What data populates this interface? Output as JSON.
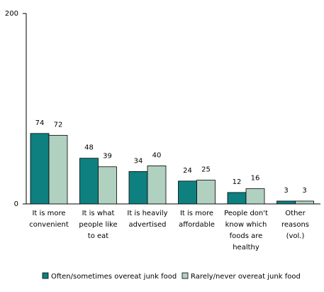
{
  "chart_data": {
    "type": "bar",
    "title": "",
    "xlabel": "",
    "ylabel": "",
    "ylim": [
      0,
      200
    ],
    "yticks": [
      "0",
      "200"
    ],
    "categories": [
      [
        "It is more",
        "convenient"
      ],
      [
        "It is what",
        "people like",
        "to eat"
      ],
      [
        "It is heavily",
        "advertised"
      ],
      [
        "It is more",
        "affordable"
      ],
      [
        "People don't",
        "know which",
        "foods are",
        "healthy"
      ],
      [
        "Other",
        "reasons",
        "(vol.)"
      ]
    ],
    "series": [
      {
        "name": "Often/sometimes overeat junk food",
        "color": "#0f8080",
        "values": [
          74,
          48,
          34,
          24,
          12,
          3
        ]
      },
      {
        "name": "Rarely/never overeat junk food",
        "color": "#b0d0c0",
        "values": [
          72,
          39,
          40,
          25,
          16,
          3
        ]
      }
    ],
    "grid": false,
    "legend_position": "bottom"
  }
}
